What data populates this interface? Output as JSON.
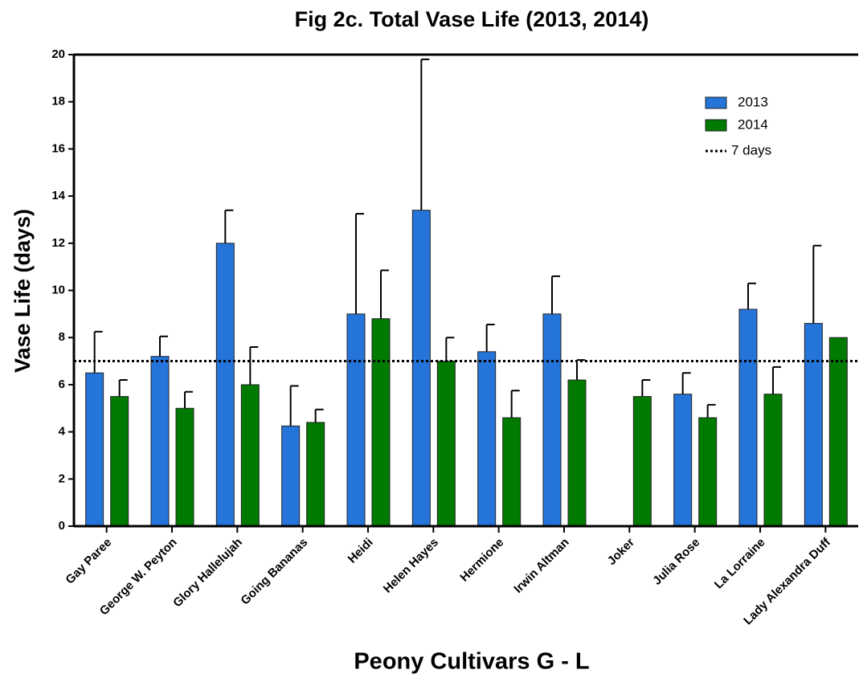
{
  "chart_data": {
    "type": "bar",
    "title": "Fig 2c. Total Vase Life (2013, 2014)",
    "x_label": "Peony Cultivars G - L",
    "y_label": "Vase Life (days)",
    "categories": [
      "Gay Paree",
      "George W. Peyton",
      "Glory Hallelujah",
      "Going Bananas",
      "Heidi",
      "Helen Hayes",
      "Hermione",
      "Irwin Altman",
      "Joker",
      "Julia Rose",
      "La Lorraine",
      "Lady Alexandra Duff"
    ],
    "series": [
      {
        "name": "2013",
        "color": "#2574d9",
        "values": [
          6.5,
          7.2,
          12.0,
          4.25,
          9.0,
          13.4,
          7.4,
          9.0,
          null,
          5.6,
          9.2,
          8.6
        ],
        "errors": [
          1.75,
          0.85,
          1.4,
          1.7,
          4.25,
          6.4,
          1.15,
          1.6,
          null,
          0.9,
          1.1,
          3.3
        ]
      },
      {
        "name": "2014",
        "color": "#007a00",
        "values": [
          5.5,
          5.0,
          6.0,
          4.4,
          8.8,
          7.0,
          4.6,
          6.2,
          5.5,
          4.6,
          5.6,
          8.0
        ],
        "errors": [
          0.7,
          0.7,
          1.6,
          0.55,
          2.05,
          1.0,
          1.15,
          0.85,
          0.7,
          0.55,
          1.15,
          null
        ]
      }
    ],
    "reference_line": {
      "name": "7 days",
      "value": 7
    },
    "ylim": [
      0,
      20
    ],
    "yticks": [
      0,
      2,
      4,
      6,
      8,
      10,
      12,
      14,
      16,
      18,
      20
    ],
    "legend": "upper right"
  }
}
